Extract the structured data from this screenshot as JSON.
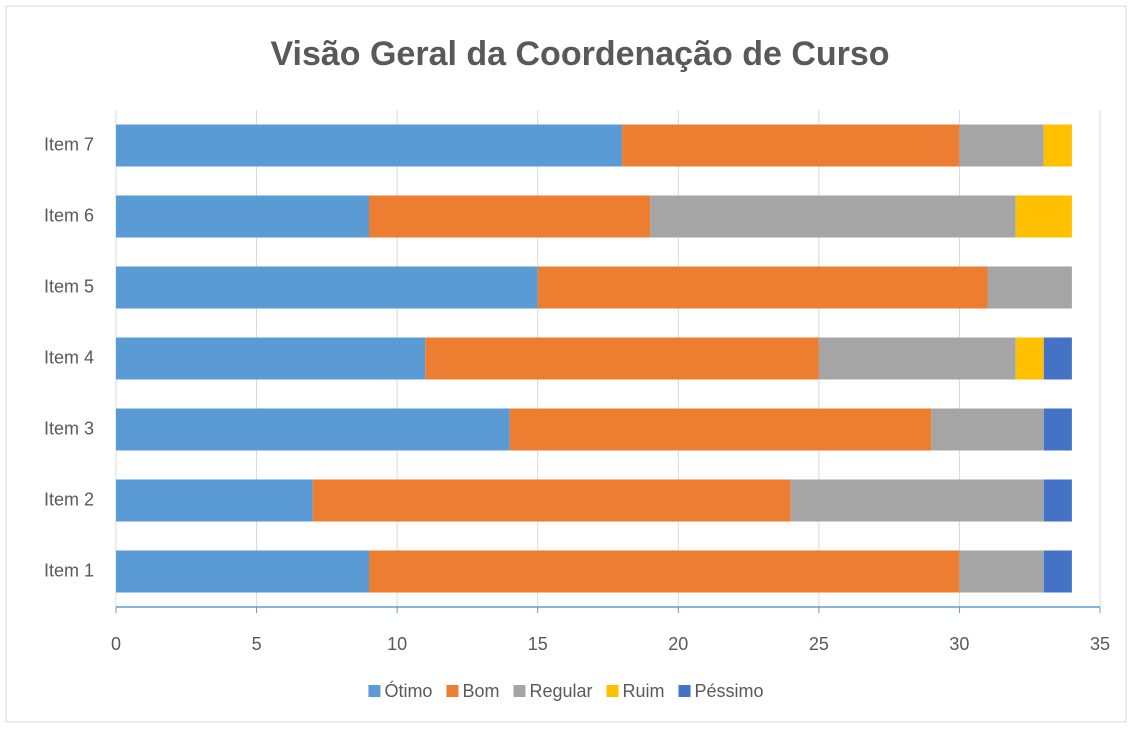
{
  "chart_data": {
    "type": "stacked-bar-horizontal",
    "title": "Visão Geral da Coordenação de Curso",
    "categories": [
      "Item 1",
      "Item 2",
      "Item 3",
      "Item 4",
      "Item 5",
      "Item 6",
      "Item 7"
    ],
    "series": [
      {
        "name": "Ótimo",
        "color": "#5b9bd5",
        "values": [
          9,
          7,
          14,
          11,
          15,
          9,
          18
        ]
      },
      {
        "name": "Bom",
        "color": "#ed7d31",
        "values": [
          21,
          17,
          15,
          14,
          16,
          10,
          12
        ]
      },
      {
        "name": "Regular",
        "color": "#a5a5a5",
        "values": [
          3,
          9,
          4,
          7,
          3,
          13,
          3
        ]
      },
      {
        "name": "Ruim",
        "color": "#ffc000",
        "values": [
          0,
          0,
          0,
          1,
          0,
          2,
          1
        ]
      },
      {
        "name": "Péssimo",
        "color": "#4472c4",
        "values": [
          1,
          1,
          1,
          1,
          0,
          0,
          0
        ]
      }
    ],
    "xlim": [
      0,
      35
    ],
    "xticks": [
      0,
      5,
      10,
      15,
      20,
      25,
      30,
      35
    ],
    "grid": true,
    "legend": "bottom"
  }
}
